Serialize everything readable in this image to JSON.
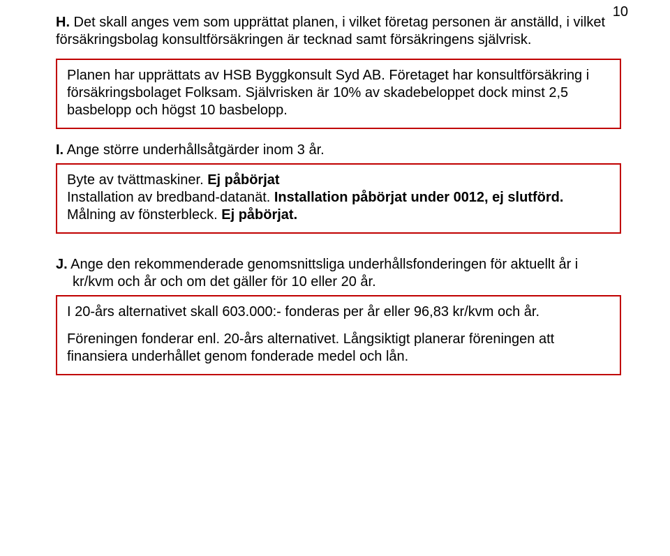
{
  "colors": {
    "box_border": "#c00000",
    "text": "#000000",
    "background": "#ffffff"
  },
  "typography": {
    "font_family": "Arial, Helvetica, sans-serif",
    "body_fontsize_pt": 15,
    "bold_weight": 700
  },
  "page_number": "10",
  "section_H": {
    "letter": "H.",
    "heading": " Det skall anges vem som upprättat planen, i vilket företag personen är anställd, i vilket försäkringsbolag konsultförsäkringen är tecknad samt försäkringens självrisk.",
    "body": "Planen har upprättats av HSB Byggkonsult Syd AB. Företaget har konsultförsäkring i försäkringsbolaget Folksam. Självrisken är 10% av skadebeloppet dock minst 2,5 basbelopp och högst 10 basbelopp."
  },
  "section_I": {
    "letter": "I.",
    "heading": " Ange större underhållsåtgärder inom 3 år.",
    "line1_prefix": "Byte av tvättmaskiner. ",
    "line1_bold": "Ej påbörjat",
    "line2_prefix": "Installation av bredband-datanät. ",
    "line2_bold": "Installation påbörjat under 0012, ej slutförd.",
    "line3_prefix": "Målning av fönsterbleck. ",
    "line3_bold": "Ej påbörjat."
  },
  "section_J": {
    "letter": "J.",
    "heading": " Ange den rekommenderade genomsnittsliga underhållsfonderingen för aktuellt år i kr/kvm och år och om det gäller för 10 eller 20 år.",
    "para1": "I 20-års alternativet skall 603.000:- fonderas per år eller 96,83 kr/kvm och år.",
    "para2": "Föreningen fonderar enl. 20-års alternativet. Långsiktigt planerar föreningen att finansiera underhållet genom fonderade medel och lån."
  }
}
